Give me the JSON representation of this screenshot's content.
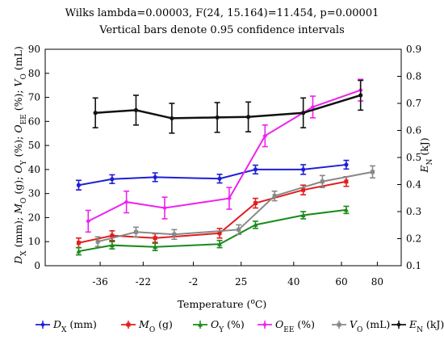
{
  "chart_data": {
    "type": "line",
    "title": "Wilks lambda=0.00003, F(24, 15.164)=11.454, p=0.00001",
    "subtitle": "Vertical bars denote 0.95 confidence intervals",
    "xlabel": "Temperature (°C)",
    "ylabel_left": "D_X (mm); M_O (g); O_Y (%); O_EE (%); V_O (mL)",
    "ylabel_right": "E_N (kJ)",
    "categories": [
      "-36",
      "-22",
      "-2",
      "25",
      "40",
      "60",
      "80"
    ],
    "ylim_left": [
      0,
      90
    ],
    "ylim_right": [
      0.1,
      0.9
    ],
    "yticks_left": [
      "0",
      "10",
      "20",
      "30",
      "40",
      "50",
      "60",
      "70",
      "80",
      "90"
    ],
    "yticks_right": [
      "0.1",
      "0.2",
      "0.3",
      "0.4",
      "0.5",
      "0.6",
      "0.7",
      "0.8",
      "0.9"
    ],
    "grid": false,
    "legend_position": "bottom",
    "series": [
      {
        "name": "D_X (mm)",
        "axis": "left",
        "color": "#1f1fd6",
        "marker": "circle",
        "x": [
          -36,
          -22,
          -2,
          25,
          40,
          60,
          80
        ],
        "values": [
          33.5,
          36,
          36.8,
          36.2,
          40,
          40,
          42
        ],
        "err": [
          2,
          1.8,
          1.8,
          1.8,
          1.8,
          2,
          1.8
        ]
      },
      {
        "name": "M_O (g)",
        "axis": "left",
        "color": "#e01e1e",
        "marker": "square",
        "x": [
          -36,
          -22,
          -2,
          25,
          40,
          60,
          80
        ],
        "values": [
          9.5,
          12.5,
          11.5,
          13.5,
          26,
          31.5,
          35
        ],
        "err": [
          2,
          2,
          1.8,
          2,
          2,
          2,
          2
        ]
      },
      {
        "name": "O_Y (%)",
        "axis": "left",
        "color": "#1a8a1a",
        "marker": "triangle",
        "x": [
          -36,
          -22,
          -2,
          25,
          40,
          60,
          80
        ],
        "values": [
          6,
          8.5,
          7.8,
          9,
          17,
          21,
          23.2
        ],
        "err": [
          1.5,
          1.5,
          1.5,
          1.5,
          1.5,
          1.5,
          1.5
        ]
      },
      {
        "name": "O_EE (%)",
        "axis": "left",
        "color": "#ee22ee",
        "marker": "diamond",
        "x": [
          -36,
          -22,
          -2,
          25,
          40,
          60,
          80
        ],
        "values": [
          18.5,
          26.5,
          24,
          28,
          54,
          66,
          73
        ],
        "err": [
          4.5,
          4.5,
          4.5,
          4.5,
          4.5,
          4.5,
          4.5
        ]
      },
      {
        "name": "V_O (mL)",
        "axis": "left",
        "color": "#888888",
        "marker": "square",
        "x": [
          -36,
          -22,
          -2,
          25,
          40,
          60,
          80
        ],
        "values": [
          10,
          14,
          13,
          15,
          29,
          35,
          39
        ],
        "err": [
          2,
          2,
          2,
          2,
          2,
          2.5,
          2.5
        ]
      },
      {
        "name": "E_N (kJ)",
        "axis": "right",
        "color": "#111111",
        "marker": "circle",
        "x": [
          -36,
          -22,
          -2,
          25,
          40,
          60,
          80
        ],
        "values": [
          0.665,
          0.675,
          0.645,
          0.648,
          0.65,
          0.665,
          0.73
        ],
        "err": [
          0.055,
          0.055,
          0.055,
          0.055,
          0.055,
          0.055,
          0.055
        ]
      }
    ]
  },
  "legend": {
    "items": [
      {
        "prefix": "D",
        "sub": "X",
        "suffix": " (mm)"
      },
      {
        "prefix": "M",
        "sub": "O",
        "suffix": " (g)"
      },
      {
        "prefix": "O",
        "sub": "Y",
        "suffix": " (%)"
      },
      {
        "prefix": "O",
        "sub": "EE",
        "suffix": " (%)"
      },
      {
        "prefix": "V",
        "sub": "O",
        "suffix": " (mL)"
      },
      {
        "prefix": "E",
        "sub": "N",
        "suffix": " (kJ)"
      }
    ]
  }
}
